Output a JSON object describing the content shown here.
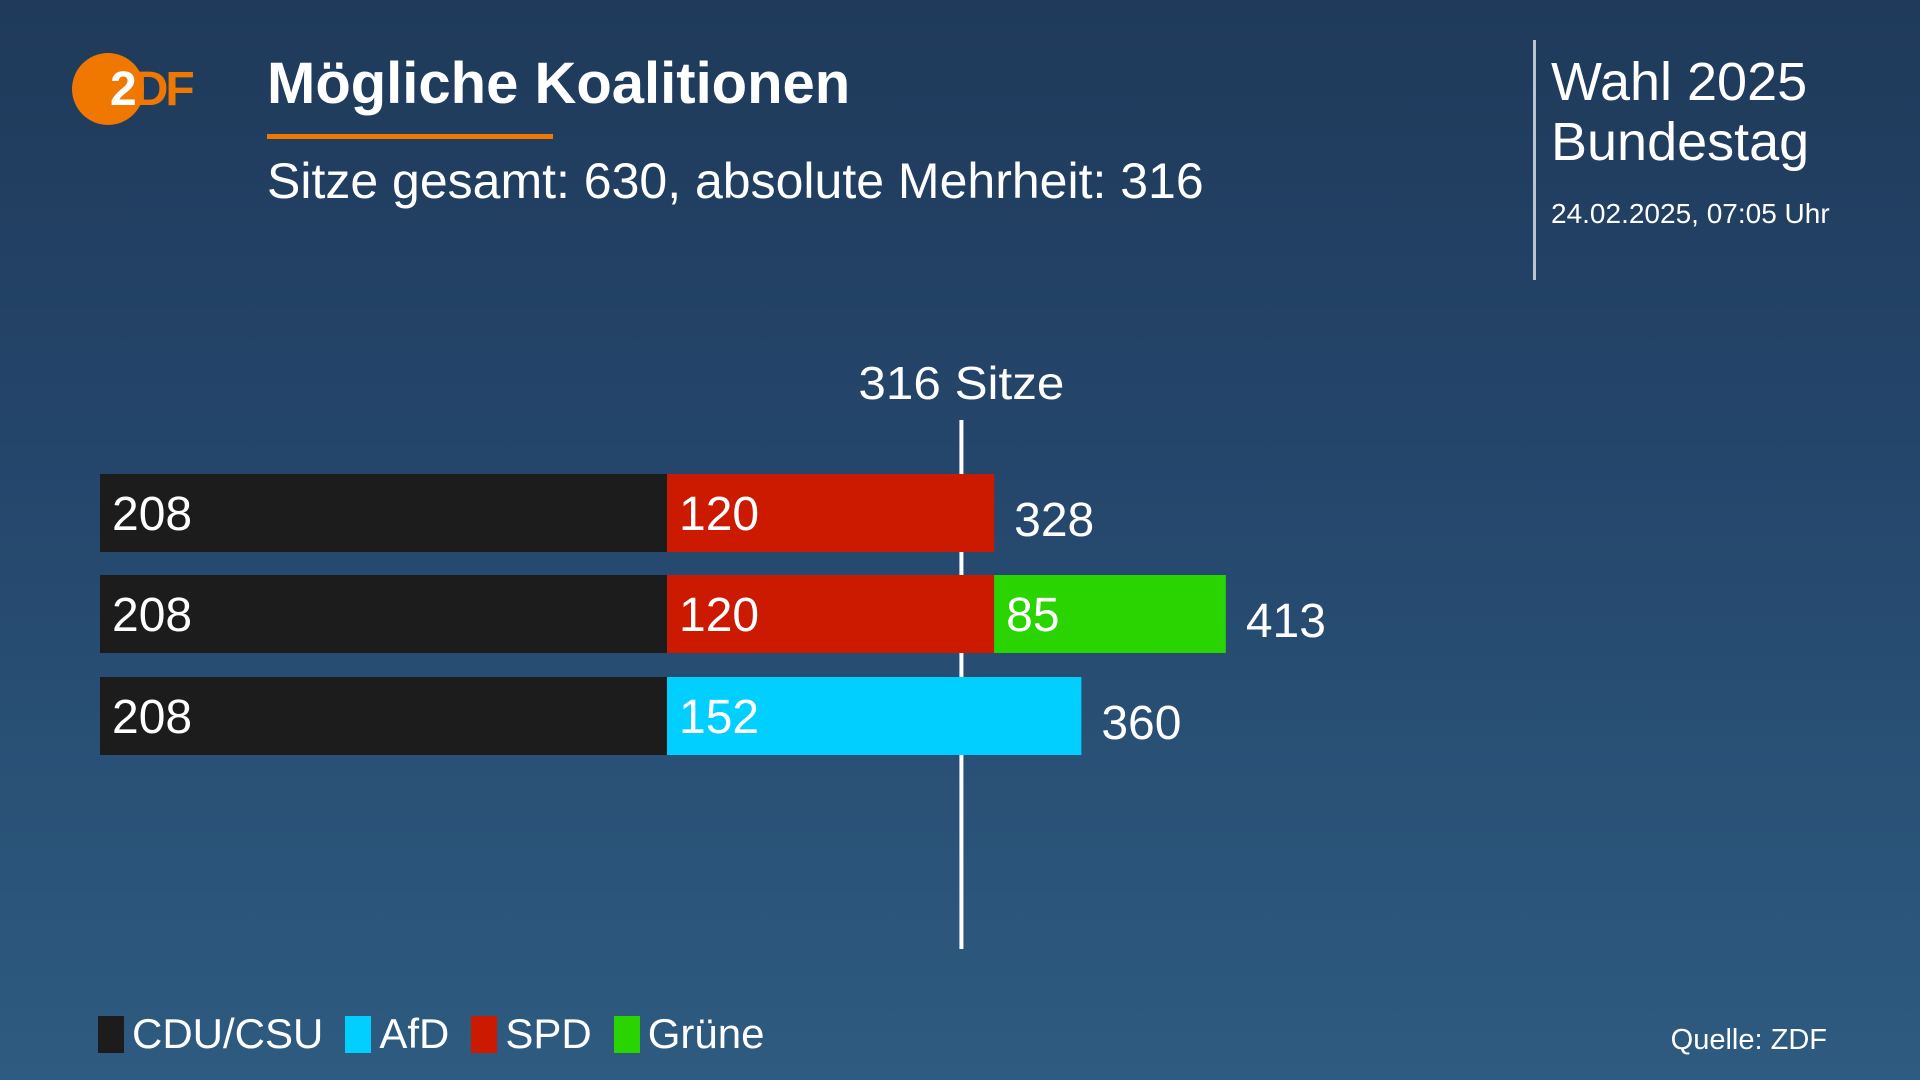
{
  "logo": {
    "text_z": "2",
    "text_df": "DF"
  },
  "header": {
    "title": "Mögliche Koalitionen",
    "subtitle": "Sitze gesamt: 630, absolute Mehrheit: 316",
    "event_line1": "Wahl 2025",
    "event_line2": "Bundestag",
    "date": "24.02.2025, 07:05 Uhr"
  },
  "colors": {
    "accent": "#f07800",
    "CDU/CSU": "#1c1c1c",
    "AfD": "#00cfff",
    "SPD": "#cc1a00",
    "Grüne": "#2ad400"
  },
  "chart_data": {
    "type": "bar",
    "orientation": "horizontal",
    "stacked": true,
    "threshold": {
      "value": 316,
      "label": "316 Sitze"
    },
    "rows": [
      {
        "segments": [
          {
            "party": "CDU/CSU",
            "value": 208
          },
          {
            "party": "SPD",
            "value": 120
          }
        ],
        "total": 328
      },
      {
        "segments": [
          {
            "party": "CDU/CSU",
            "value": 208
          },
          {
            "party": "SPD",
            "value": 120
          },
          {
            "party": "Grüne",
            "value": 85
          }
        ],
        "total": 413
      },
      {
        "segments": [
          {
            "party": "CDU/CSU",
            "value": 208
          },
          {
            "party": "AfD",
            "value": 152
          }
        ],
        "total": 360
      }
    ],
    "legend": [
      "CDU/CSU",
      "AfD",
      "SPD",
      "Grüne"
    ],
    "legend_placement": "bottom-left",
    "grid": false
  },
  "source": "Quelle: ZDF"
}
